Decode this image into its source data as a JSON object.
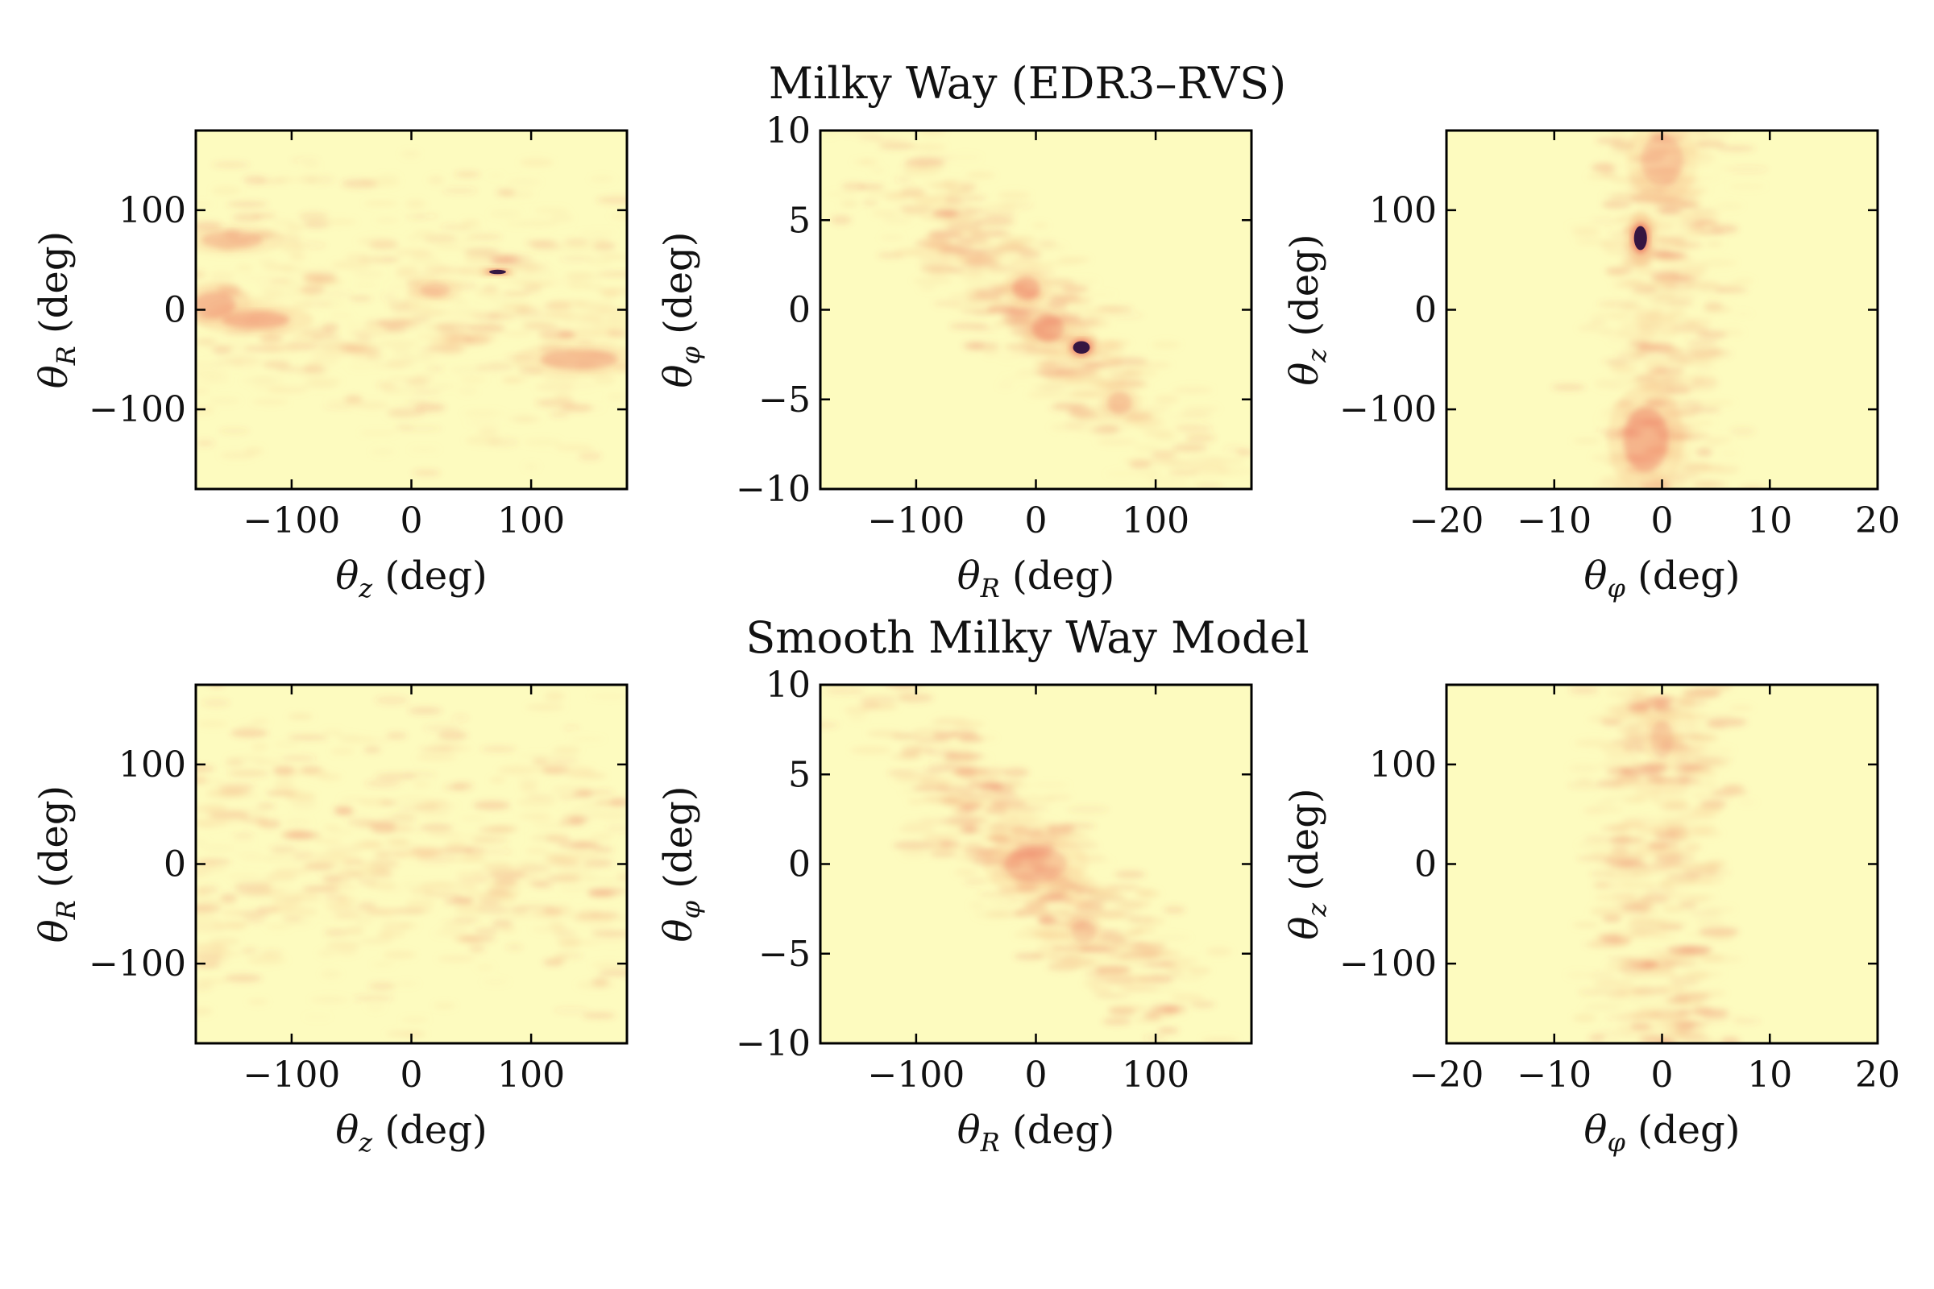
{
  "colors": {
    "background": "#fdfbbf",
    "density_low": "#f7c08a",
    "density_mid": "#e8554a",
    "density_high": "#2a0f3f"
  },
  "chart_data": [
    {
      "type": "heatmap",
      "title": "Milky Way (EDR3–RVS)",
      "panels": [
        {
          "id": "mw-rz",
          "xlabel": "θ_z (deg)",
          "ylabel": "θ_R (deg)",
          "xlim": [
            -180,
            180
          ],
          "ylim": [
            -180,
            180
          ],
          "xticks": [
            -100,
            0,
            100
          ],
          "yticks": [
            -100,
            0,
            100
          ],
          "xtick_labels": [
            "−100",
            "0",
            "100"
          ],
          "ytick_labels": [
            "−100",
            "0",
            "100"
          ],
          "xlabel_parts": {
            "sym": "θ",
            "sub": "z",
            "unit": "(deg)"
          },
          "ylabel_parts": {
            "sym": "θ",
            "sub": "R",
            "unit": "(deg)"
          },
          "band": {
            "kind": "horizontal",
            "center": 0,
            "width": 65,
            "amp": 0.5
          },
          "clumps": [
            {
              "x": 72,
              "y": 38,
              "sx": 7,
              "sy": 2.2,
              "amp": 1.0
            },
            {
              "x": -130,
              "y": -10,
              "sx": 22,
              "sy": 7,
              "amp": 0.55
            },
            {
              "x": -165,
              "y": 5,
              "sx": 14,
              "sy": 10,
              "amp": 0.5
            },
            {
              "x": -150,
              "y": 70,
              "sx": 20,
              "sy": 7,
              "amp": 0.4
            },
            {
              "x": 140,
              "y": -50,
              "sx": 25,
              "sy": 8,
              "amp": 0.45
            },
            {
              "x": 20,
              "y": 20,
              "sx": 10,
              "sy": 6,
              "amp": 0.35
            }
          ]
        },
        {
          "id": "mw-phir",
          "xlabel": "θ_R (deg)",
          "ylabel": "θ_φ (deg)",
          "xlim": [
            -180,
            180
          ],
          "ylim": [
            -10,
            10
          ],
          "xticks": [
            -100,
            0,
            100
          ],
          "yticks": [
            -10,
            -5,
            0,
            5,
            10
          ],
          "xtick_labels": [
            "−100",
            "0",
            "100"
          ],
          "ytick_labels": [
            "−10",
            "−5",
            "0",
            "5",
            "10"
          ],
          "xlabel_parts": {
            "sym": "θ",
            "sub": "R",
            "unit": "(deg)"
          },
          "ylabel_parts": {
            "sym": "θ",
            "sub": "φ",
            "unit": "(deg)"
          },
          "band": {
            "kind": "diagonal",
            "slope": -0.06,
            "width": 2.2,
            "amp": 0.55
          },
          "clumps": [
            {
              "x": 38,
              "y": -2.1,
              "sx": 7,
              "sy": 0.35,
              "amp": 1.0
            },
            {
              "x": -8,
              "y": 1.2,
              "sx": 9,
              "sy": 0.5,
              "amp": 0.55
            },
            {
              "x": 10,
              "y": -1.0,
              "sx": 10,
              "sy": 0.6,
              "amp": 0.45
            },
            {
              "x": 70,
              "y": -5.2,
              "sx": 8,
              "sy": 0.5,
              "amp": 0.4
            }
          ]
        },
        {
          "id": "mw-zphi",
          "xlabel": "θ_φ (deg)",
          "ylabel": "θ_z (deg)",
          "xlim": [
            -20,
            20
          ],
          "ylim": [
            -180,
            180
          ],
          "xticks": [
            -20,
            -10,
            0,
            10,
            20
          ],
          "yticks": [
            -100,
            0,
            100
          ],
          "xtick_labels": [
            "−20",
            "−10",
            "0",
            "10",
            "20"
          ],
          "ytick_labels": [
            "−100",
            "0",
            "100"
          ],
          "xlabel_parts": {
            "sym": "θ",
            "sub": "φ",
            "unit": "(deg)"
          },
          "ylabel_parts": {
            "sym": "θ",
            "sub": "z",
            "unit": "(deg)"
          },
          "band": {
            "kind": "vertical",
            "center": 0,
            "width": 3.2,
            "amp": 0.55
          },
          "clumps": [
            {
              "x": -2,
              "y": 72,
              "sx": 0.6,
              "sy": 12,
              "amp": 1.0
            },
            {
              "x": -1.5,
              "y": -130,
              "sx": 1.6,
              "sy": 25,
              "amp": 0.55
            },
            {
              "x": 0,
              "y": 150,
              "sx": 1.5,
              "sy": 20,
              "amp": 0.35
            }
          ]
        }
      ]
    },
    {
      "type": "heatmap",
      "title": "Smooth Milky Way Model",
      "panels": [
        {
          "id": "sm-rz",
          "xlabel": "θ_z (deg)",
          "ylabel": "θ_R (deg)",
          "xlim": [
            -180,
            180
          ],
          "ylim": [
            -180,
            180
          ],
          "xticks": [
            -100,
            0,
            100
          ],
          "yticks": [
            -100,
            0,
            100
          ],
          "xtick_labels": [
            "−100",
            "0",
            "100"
          ],
          "ytick_labels": [
            "−100",
            "0",
            "100"
          ],
          "xlabel_parts": {
            "sym": "θ",
            "sub": "z",
            "unit": "(deg)"
          },
          "ylabel_parts": {
            "sym": "θ",
            "sub": "R",
            "unit": "(deg)"
          },
          "band": {
            "kind": "horizontal",
            "center": 0,
            "width": 70,
            "amp": 0.6
          },
          "clumps": []
        },
        {
          "id": "sm-phir",
          "xlabel": "θ_R (deg)",
          "ylabel": "θ_φ (deg)",
          "xlim": [
            -180,
            180
          ],
          "ylim": [
            -10,
            10
          ],
          "xticks": [
            -100,
            0,
            100
          ],
          "yticks": [
            -10,
            -5,
            0,
            5,
            10
          ],
          "xtick_labels": [
            "−100",
            "0",
            "100"
          ],
          "ytick_labels": [
            "−10",
            "−5",
            "0",
            "5",
            "10"
          ],
          "xlabel_parts": {
            "sym": "θ",
            "sub": "R",
            "unit": "(deg)"
          },
          "ylabel_parts": {
            "sym": "θ",
            "sub": "φ",
            "unit": "(deg)"
          },
          "band": {
            "kind": "diagonal",
            "slope": -0.06,
            "width": 2.3,
            "amp": 0.65
          },
          "clumps": [
            {
              "x": 0,
              "y": 0,
              "sx": 20,
              "sy": 0.8,
              "amp": 0.35
            },
            {
              "x": 40,
              "y": -3.8,
              "sx": 8,
              "sy": 0.5,
              "amp": 0.3
            }
          ]
        },
        {
          "id": "sm-zphi",
          "xlabel": "θ_φ (deg)",
          "ylabel": "θ_z (deg)",
          "xlim": [
            -20,
            20
          ],
          "ylim": [
            -180,
            180
          ],
          "xticks": [
            -20,
            -10,
            0,
            10,
            20
          ],
          "yticks": [
            -100,
            0,
            100
          ],
          "xtick_labels": [
            "−20",
            "−10",
            "0",
            "10",
            "20"
          ],
          "ytick_labels": [
            "−100",
            "0",
            "100"
          ],
          "xlabel_parts": {
            "sym": "θ",
            "sub": "φ",
            "unit": "(deg)"
          },
          "ylabel_parts": {
            "sym": "θ",
            "sub": "z",
            "unit": "(deg)"
          },
          "band": {
            "kind": "vertical",
            "center": 0,
            "width": 3.2,
            "amp": 0.65
          },
          "clumps": [
            {
              "x": 0,
              "y": 125,
              "sx": 0.8,
              "sy": 15,
              "amp": 0.3
            }
          ]
        }
      ]
    }
  ]
}
